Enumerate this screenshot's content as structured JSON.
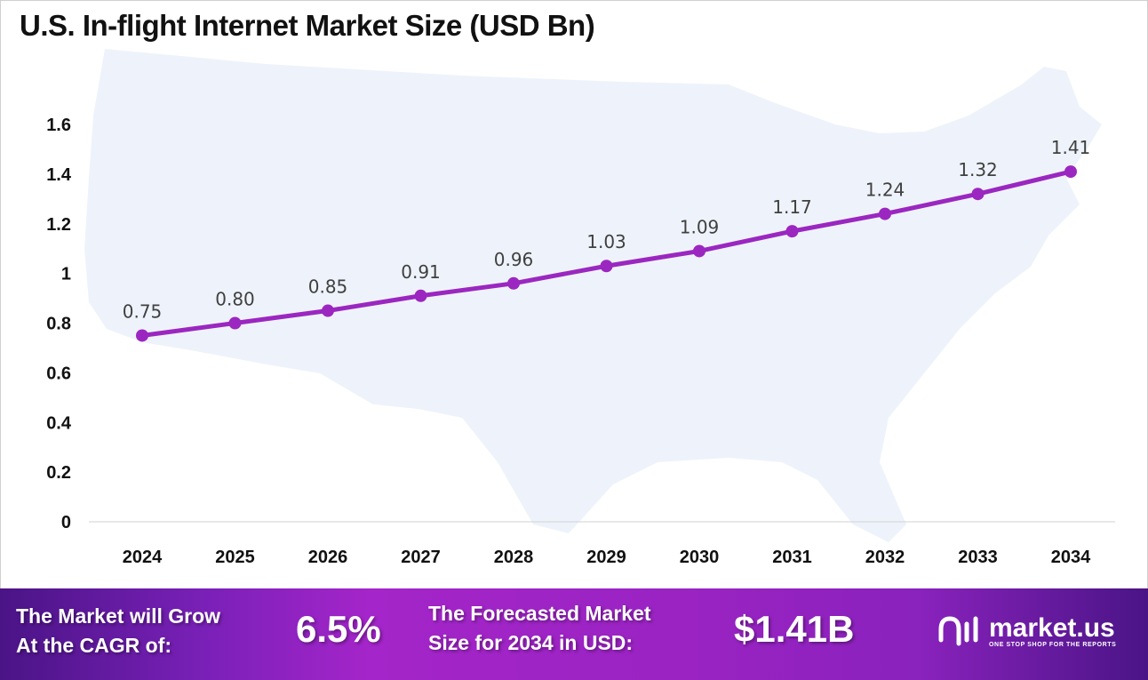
{
  "chart_data": {
    "type": "line",
    "title": "U.S. In-flight Internet Market Size (USD Bn)",
    "categories": [
      "2024",
      "2025",
      "2026",
      "2027",
      "2028",
      "2029",
      "2030",
      "2031",
      "2032",
      "2033",
      "2034"
    ],
    "values": [
      0.75,
      0.8,
      0.85,
      0.91,
      0.96,
      1.03,
      1.09,
      1.17,
      1.24,
      1.32,
      1.41
    ],
    "data_labels": [
      "0.75",
      "0.80",
      "0.85",
      "0.91",
      "0.96",
      "1.03",
      "1.09",
      "1.17",
      "1.24",
      "1.32",
      "1.41"
    ],
    "yticks": [
      "0",
      "0.2",
      "0.4",
      "0.6",
      "0.8",
      "1",
      "1.2",
      "1.4",
      "1.6"
    ],
    "ylim": [
      0,
      1.6
    ],
    "xlabel": "",
    "ylabel": "",
    "grid": false,
    "line_color": "#9b27c0",
    "background": "US map silhouette"
  },
  "footer": {
    "cagr_label_1": "The Market will Grow",
    "cagr_label_2": "At the CAGR of:",
    "cagr_value": "6.5%",
    "forecast_label_1": "The Forecasted Market",
    "forecast_label_2": "Size for 2034 in USD:",
    "forecast_value": "$1.41B",
    "logo_name": "market.us",
    "logo_tagline": "ONE STOP SHOP FOR THE REPORTS"
  }
}
